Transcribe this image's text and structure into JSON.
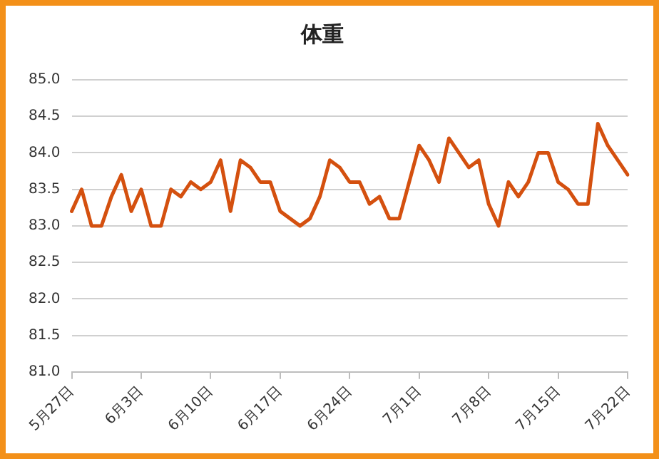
{
  "chart_data": {
    "type": "line",
    "title": "体重",
    "categories": [
      "5月27日",
      null,
      null,
      null,
      null,
      null,
      null,
      "6月3日",
      null,
      null,
      null,
      null,
      null,
      null,
      "6月10日",
      null,
      null,
      null,
      null,
      null,
      null,
      "6月17日",
      null,
      null,
      null,
      null,
      null,
      null,
      "6月24日",
      null,
      null,
      null,
      null,
      null,
      null,
      "7月1日",
      null,
      null,
      null,
      null,
      null,
      null,
      "7月8日",
      null,
      null,
      null,
      null,
      null,
      null,
      "7月15日",
      null,
      null,
      null,
      null,
      null,
      null,
      "7月22日"
    ],
    "series": [
      {
        "color": "#d4500f",
        "values": [
          83.2,
          83.5,
          83.0,
          83.0,
          83.4,
          83.7,
          83.2,
          83.5,
          83.0,
          83.0,
          83.5,
          83.4,
          83.6,
          83.5,
          83.6,
          83.9,
          83.2,
          83.9,
          83.8,
          83.6,
          83.6,
          83.2,
          83.1,
          83.0,
          83.1,
          83.4,
          83.9,
          83.8,
          83.6,
          83.6,
          83.3,
          83.4,
          83.1,
          83.1,
          83.6,
          84.1,
          83.9,
          83.6,
          84.2,
          84.0,
          83.8,
          83.9,
          83.3,
          83.0,
          83.6,
          83.4,
          83.6,
          84.0,
          84.0,
          83.6,
          83.5,
          83.3,
          83.3,
          84.4,
          84.1,
          83.9,
          83.7
        ]
      }
    ],
    "ylim": [
      81,
      85
    ],
    "yticks": [
      {
        "value": 81,
        "label": "81.0"
      },
      {
        "value": 81.5,
        "label": "81.5"
      },
      {
        "value": 82,
        "label": "82.0"
      },
      {
        "value": 82.5,
        "label": "82.5"
      },
      {
        "value": 83,
        "label": "83.0"
      },
      {
        "value": 83.5,
        "label": "83.5"
      },
      {
        "value": 84,
        "label": "84.0"
      },
      {
        "value": 84.5,
        "label": "84.5"
      },
      {
        "value": 85,
        "label": "85.0"
      }
    ],
    "grid": "y",
    "legend": false,
    "marker": "none",
    "line_style": "solid"
  }
}
